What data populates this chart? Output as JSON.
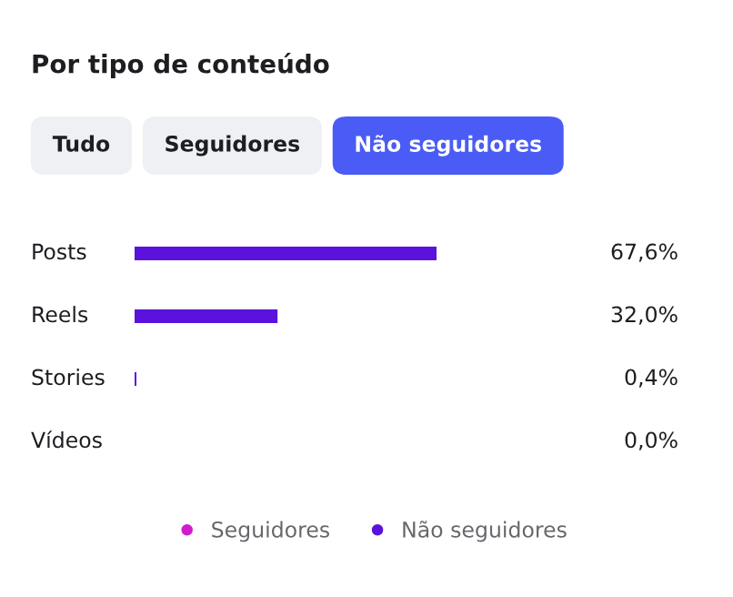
{
  "chart_data": {
    "type": "bar",
    "orientation": "horizontal",
    "title": "Por tipo de conteúdo",
    "annotations": [
      "Tudo",
      "Seguidores",
      "Não seguidores"
    ],
    "categories": [
      "Posts",
      "Reels",
      "Stories",
      "Vídeos"
    ],
    "series": [
      {
        "name": "Seguidores",
        "color": "#d01ccf",
        "values": [
          null,
          null,
          null,
          null
        ]
      },
      {
        "name": "Não seguidores",
        "color": "#5a12dc",
        "values": [
          67.6,
          32.0,
          0.4,
          0.0
        ],
        "value_labels": [
          "67,6%",
          "32,0%",
          "0,4%",
          "0,0%"
        ]
      }
    ],
    "legend": "bottom"
  }
}
